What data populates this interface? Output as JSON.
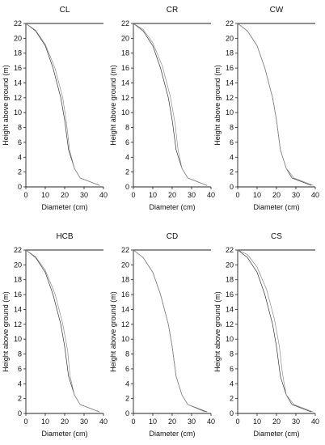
{
  "chart_data": [
    {
      "type": "line",
      "title": "CL",
      "xlabel": "Diameter  (cm)",
      "ylabel": "Height above ground  (m)",
      "xlim": [
        0,
        40
      ],
      "ylim": [
        0,
        22
      ],
      "xticks": [
        "0",
        "10",
        "20",
        "30",
        "40"
      ],
      "yticks": [
        "0",
        "2",
        "4",
        "6",
        "8",
        "10",
        "12",
        "14",
        "16",
        "18",
        "20",
        "22"
      ],
      "series": [
        {
          "color": "#333333",
          "points": [
            [
              0,
              22
            ],
            [
              5,
              21
            ],
            [
              10,
              19
            ],
            [
              14,
              16
            ],
            [
              18,
              12
            ],
            [
              20,
              9
            ],
            [
              22,
              5
            ],
            [
              25,
              2.5
            ],
            [
              28,
              1.2
            ],
            [
              38,
              0.2
            ]
          ]
        },
        {
          "color": "#8c8c8c",
          "points": [
            [
              0,
              22
            ],
            [
              5,
              21.1
            ],
            [
              10,
              19.2
            ],
            [
              15,
              16
            ],
            [
              19,
              12
            ],
            [
              21,
              8.5
            ],
            [
              22.5,
              5
            ],
            [
              25,
              2.5
            ],
            [
              28,
              1.2
            ],
            [
              38,
              0.2
            ]
          ]
        }
      ]
    },
    {
      "type": "line",
      "title": "CR",
      "xlabel": "Diameter  (cm)",
      "ylabel": "Height above ground  (m)",
      "xlim": [
        0,
        40
      ],
      "ylim": [
        0,
        22
      ],
      "xticks": [
        "0",
        "10",
        "20",
        "30",
        "40"
      ],
      "yticks": [
        "0",
        "2",
        "4",
        "6",
        "8",
        "10",
        "12",
        "14",
        "16",
        "18",
        "20",
        "22"
      ],
      "series": [
        {
          "color": "#333333",
          "points": [
            [
              0,
              22
            ],
            [
              5,
              21
            ],
            [
              10,
              19
            ],
            [
              14,
              16
            ],
            [
              18,
              12
            ],
            [
              20,
              9
            ],
            [
              22,
              5
            ],
            [
              25,
              2.5
            ],
            [
              28,
              1.2
            ],
            [
              38,
              0.2
            ]
          ]
        },
        {
          "color": "#8c8c8c",
          "points": [
            [
              0,
              22
            ],
            [
              5,
              21.2
            ],
            [
              10,
              19.4
            ],
            [
              15,
              16.2
            ],
            [
              19,
              12.2
            ],
            [
              21.5,
              8.5
            ],
            [
              23,
              5
            ],
            [
              25,
              2.5
            ],
            [
              28,
              1.2
            ],
            [
              38,
              0.2
            ]
          ]
        }
      ]
    },
    {
      "type": "line",
      "title": "CW",
      "xlabel": "Diameter  (cm)",
      "ylabel": "Height above ground  (m)",
      "xlim": [
        0,
        40
      ],
      "ylim": [
        0,
        22
      ],
      "xticks": [
        "0",
        "10",
        "20",
        "30",
        "40"
      ],
      "yticks": [
        "0",
        "2",
        "4",
        "6",
        "8",
        "10",
        "12",
        "14",
        "16",
        "18",
        "20",
        "22"
      ],
      "series": [
        {
          "color": "#333333",
          "points": [
            [
              0,
              22
            ],
            [
              5,
              21
            ],
            [
              10,
              19
            ],
            [
              14,
              16
            ],
            [
              18,
              12
            ],
            [
              20,
              9
            ],
            [
              22,
              5
            ],
            [
              25,
              2.5
            ],
            [
              28,
              1.2
            ],
            [
              38,
              0.2
            ]
          ]
        },
        {
          "color": "#8c8c8c",
          "points": [
            [
              0,
              22
            ],
            [
              5,
              21
            ],
            [
              10,
              19
            ],
            [
              14,
              16
            ],
            [
              18,
              12
            ],
            [
              20,
              9
            ],
            [
              22,
              5
            ],
            [
              25,
              2.5
            ],
            [
              29,
              1.2
            ],
            [
              39,
              0.2
            ]
          ]
        }
      ]
    },
    {
      "type": "line",
      "title": "HCB",
      "xlabel": "Diameter  (cm)",
      "ylabel": "Height above ground  (m)",
      "xlim": [
        0,
        40
      ],
      "ylim": [
        0,
        22
      ],
      "xticks": [
        "0",
        "10",
        "20",
        "30",
        "40"
      ],
      "yticks": [
        "0",
        "2",
        "4",
        "6",
        "8",
        "10",
        "12",
        "14",
        "16",
        "18",
        "20",
        "22"
      ],
      "series": [
        {
          "color": "#333333",
          "points": [
            [
              0,
              22
            ],
            [
              5,
              21
            ],
            [
              10,
              19
            ],
            [
              14,
              16
            ],
            [
              18,
              12
            ],
            [
              20,
              9
            ],
            [
              22,
              5
            ],
            [
              25,
              2.5
            ],
            [
              28,
              1.2
            ],
            [
              38,
              0.2
            ]
          ]
        },
        {
          "color": "#8c8c8c",
          "points": [
            [
              0,
              22
            ],
            [
              5,
              21.1
            ],
            [
              10,
              19.3
            ],
            [
              15,
              16.1
            ],
            [
              19,
              12.1
            ],
            [
              21.5,
              8.5
            ],
            [
              22.8,
              5
            ],
            [
              25,
              2.5
            ],
            [
              28,
              1.2
            ],
            [
              38,
              0.2
            ]
          ]
        }
      ]
    },
    {
      "type": "line",
      "title": "CD",
      "xlabel": "Diameter  (cm)",
      "ylabel": "Height above ground  (m)",
      "xlim": [
        0,
        40
      ],
      "ylim": [
        0,
        22
      ],
      "xticks": [
        "0",
        "10",
        "20",
        "30",
        "40"
      ],
      "yticks": [
        "0",
        "2",
        "4",
        "6",
        "8",
        "10",
        "12",
        "14",
        "16",
        "18",
        "20",
        "22"
      ],
      "series": [
        {
          "color": "#333333",
          "points": [
            [
              0,
              22
            ],
            [
              5,
              21
            ],
            [
              10,
              19
            ],
            [
              14,
              16
            ],
            [
              18,
              12
            ],
            [
              20,
              9
            ],
            [
              22,
              5
            ],
            [
              25,
              2.5
            ],
            [
              28,
              1.2
            ],
            [
              38,
              0.2
            ]
          ]
        },
        {
          "color": "#8c8c8c",
          "points": [
            [
              0,
              22
            ],
            [
              5,
              21
            ],
            [
              10,
              19
            ],
            [
              14,
              16
            ],
            [
              18,
              12
            ],
            [
              20,
              9
            ],
            [
              22,
              5
            ],
            [
              25,
              2.5
            ],
            [
              28,
              1.2
            ],
            [
              37,
              0.2
            ]
          ]
        }
      ]
    },
    {
      "type": "line",
      "title": "CS",
      "xlabel": "Diameter  (cm)",
      "ylabel": "Height above ground  (m)",
      "xlim": [
        0,
        40
      ],
      "ylim": [
        0,
        22
      ],
      "xticks": [
        "0",
        "10",
        "20",
        "30",
        "40"
      ],
      "yticks": [
        "0",
        "2",
        "4",
        "6",
        "8",
        "10",
        "12",
        "14",
        "16",
        "18",
        "20",
        "22"
      ],
      "series": [
        {
          "color": "#333333",
          "points": [
            [
              0,
              22
            ],
            [
              5,
              21
            ],
            [
              10,
              19
            ],
            [
              14,
              16
            ],
            [
              18,
              12
            ],
            [
              20,
              9
            ],
            [
              22,
              5
            ],
            [
              25,
              2.5
            ],
            [
              28,
              1.2
            ],
            [
              38,
              0.2
            ]
          ]
        },
        {
          "color": "#8c8c8c",
          "points": [
            [
              0,
              22
            ],
            [
              5,
              21.4
            ],
            [
              10,
              19.7
            ],
            [
              15,
              16.6
            ],
            [
              19,
              12.6
            ],
            [
              21.5,
              9
            ],
            [
              23,
              5.5
            ],
            [
              25,
              2.5
            ],
            [
              29,
              1.2
            ],
            [
              39,
              0.2
            ]
          ]
        }
      ]
    }
  ]
}
